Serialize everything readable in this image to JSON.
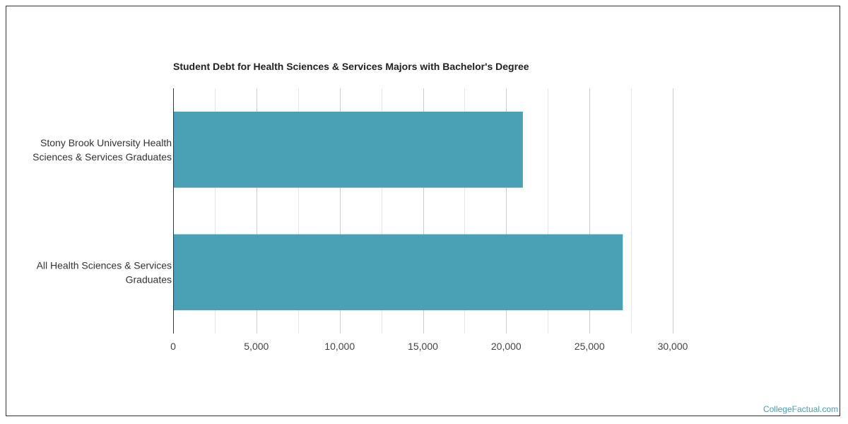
{
  "chart_data": {
    "type": "bar",
    "orientation": "horizontal",
    "title": "Student Debt for Health Sciences & Services Majors with Bachelor's Degree",
    "categories": [
      [
        "Stony Brook University Health",
        "Sciences & Services Graduates"
      ],
      [
        "All Health Sciences & Services",
        "Graduates"
      ]
    ],
    "values": [
      21000,
      27000
    ],
    "xlim": [
      0,
      30000
    ],
    "xticks": [
      0,
      5000,
      10000,
      15000,
      20000,
      25000,
      30000
    ],
    "xtick_labels": [
      "0",
      "5,000",
      "10,000",
      "15,000",
      "20,000",
      "25,000",
      "30,000"
    ],
    "bar_color": "#4aa0b5",
    "grid": true
  },
  "watermark": "CollegeFactual.com"
}
